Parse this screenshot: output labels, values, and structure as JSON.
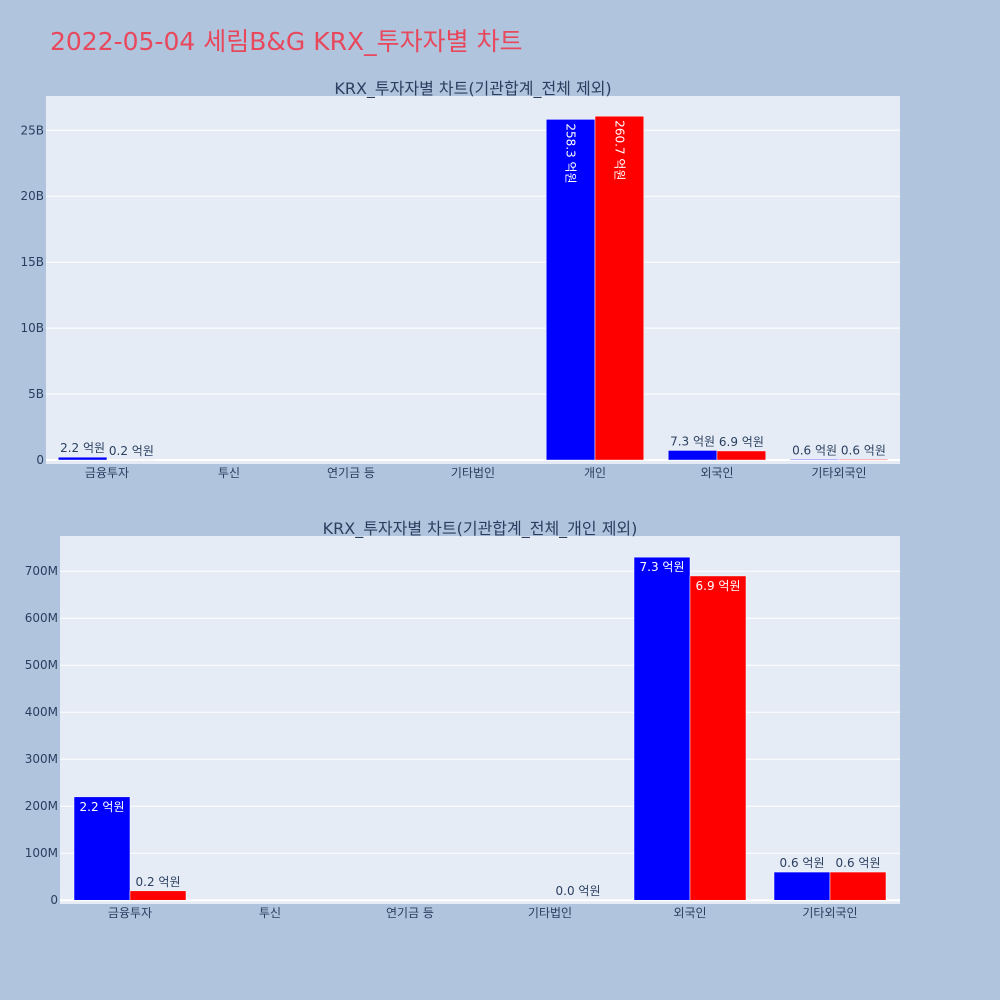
{
  "page": {
    "title": "2022-05-04 세림B&G KRX_투자자별 차트"
  },
  "colors": {
    "series_a": "#0000ff",
    "series_b": "#ff0000",
    "plot_bg": "#e5ecf6",
    "page_bg": "#b0c4de",
    "title": "#e8485c"
  },
  "chart_data": [
    {
      "type": "bar",
      "title": "KRX_투자자별 차트(기관합계_전체 제외)",
      "categories": [
        "금융투자",
        "투신",
        "연기금 등",
        "기타법인",
        "개인",
        "외국인",
        "기타외국인"
      ],
      "series": [
        {
          "values": [
            220000000,
            0,
            0,
            0,
            25830000000,
            730000000,
            60000000
          ],
          "labels": [
            "2.2 억원",
            "",
            "",
            "",
            "258.3 억원",
            "7.3 억원",
            "0.6 억원"
          ]
        },
        {
          "values": [
            20000000,
            0,
            0,
            0,
            26070000000,
            690000000,
            60000000
          ],
          "labels": [
            "0.2 억원",
            "",
            "",
            "",
            "260.7 억원",
            "6.9 억원",
            "0.6 억원"
          ]
        }
      ],
      "yticks": [
        0,
        5000000000,
        10000000000,
        15000000000,
        20000000000,
        25000000000
      ],
      "ytick_labels": [
        "0",
        "5B",
        "10B",
        "15B",
        "20B",
        "25B"
      ],
      "ylim": [
        -300000000,
        27600000000
      ],
      "grid": true,
      "legend": "none"
    },
    {
      "type": "bar",
      "title": "KRX_투자자별 차트(기관합계_전체_개인 제외)",
      "categories": [
        "금융투자",
        "투신",
        "연기금 등",
        "기타법인",
        "외국인",
        "기타외국인"
      ],
      "series": [
        {
          "values": [
            220000000,
            0,
            0,
            0,
            730000000,
            60000000
          ],
          "labels": [
            "2.2 억원",
            "",
            "",
            "",
            "7.3 억원",
            "0.6 억원"
          ]
        },
        {
          "values": [
            20000000,
            0,
            0,
            0,
            690000000,
            60000000
          ],
          "labels": [
            "0.2 억원",
            "",
            "",
            "0.0 억원",
            "6.9 억원",
            "0.6 억원"
          ]
        }
      ],
      "yticks": [
        0,
        100000000,
        200000000,
        300000000,
        400000000,
        500000000,
        600000000,
        700000000
      ],
      "ytick_labels": [
        "0",
        "100M",
        "200M",
        "300M",
        "400M",
        "500M",
        "600M",
        "700M"
      ],
      "ylim": [
        -8000000,
        775000000
      ],
      "grid": true,
      "legend": "none"
    }
  ]
}
